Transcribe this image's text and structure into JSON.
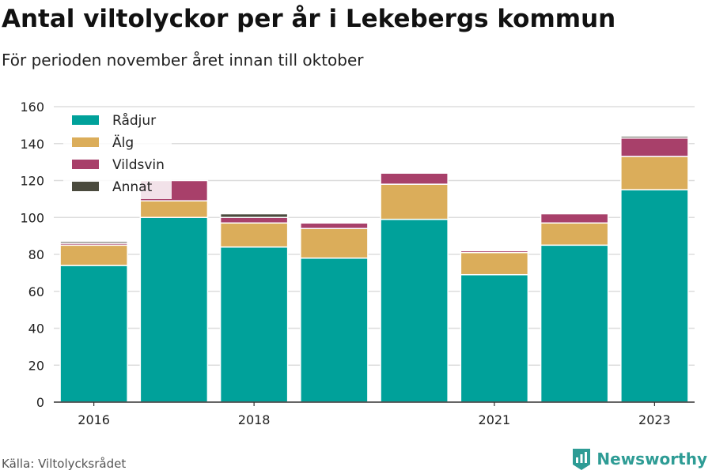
{
  "title": "Antal viltolyckor per år i Lekebergs kommun",
  "subtitle": "För perioden november året innan till oktober",
  "source": "Källa: Viltolycksrådet",
  "brand": "Newsworthy",
  "chart_data": {
    "type": "bar",
    "stacked": true,
    "categories": [
      "2016",
      "2017",
      "2018",
      "2019",
      "2020",
      "2021",
      "2022",
      "2023"
    ],
    "tick_labels": [
      "2016",
      "",
      "2018",
      "",
      "",
      "2021",
      "",
      "2023"
    ],
    "series": [
      {
        "name": "Rådjur",
        "color": "#00a19a",
        "values": [
          74,
          100,
          84,
          78,
          99,
          69,
          85,
          115
        ]
      },
      {
        "name": "Älg",
        "color": "#dbad5a",
        "values": [
          11,
          9,
          13,
          16,
          19,
          12,
          12,
          18
        ]
      },
      {
        "name": "Vildsvin",
        "color": "#a8406a",
        "values": [
          1,
          11,
          3,
          3,
          6,
          1,
          5,
          10
        ]
      },
      {
        "name": "Annat",
        "color": "#4a4a3d",
        "values": [
          1,
          0,
          2,
          0,
          0,
          0,
          0,
          1
        ]
      }
    ],
    "ylim": [
      0,
      160
    ],
    "yticks": [
      0,
      20,
      40,
      60,
      80,
      100,
      120,
      140,
      160
    ],
    "grid": true,
    "legend_position": "top-left"
  }
}
